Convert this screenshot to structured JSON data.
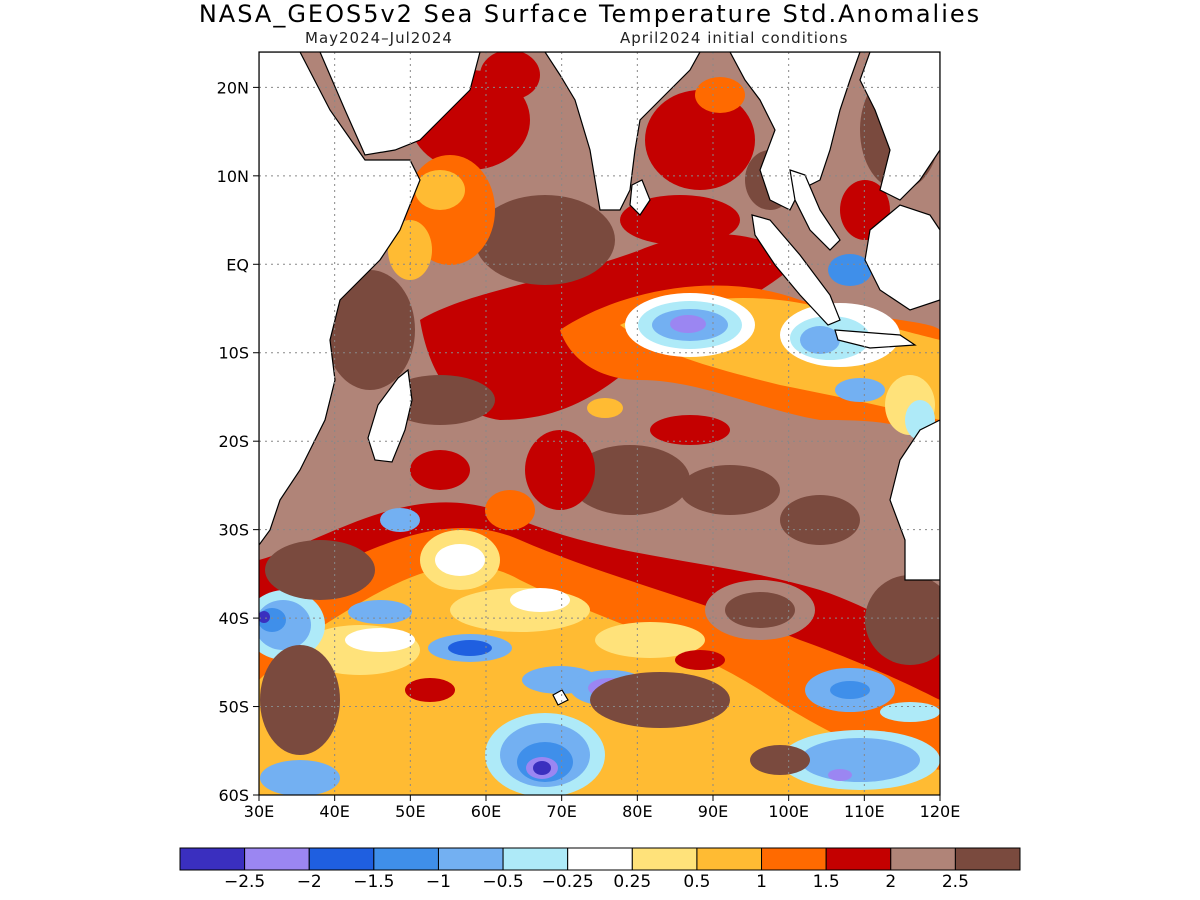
{
  "header": {
    "title": "NASA_GEOS5v2 Sea Surface Temperature Std.Anomalies",
    "period": "May2024–Jul2024",
    "init": "April2024 initial conditions"
  },
  "map": {
    "lat_labels": [
      "20N",
      "10N",
      "EQ",
      "10S",
      "20S",
      "30S",
      "40S",
      "50S",
      "60S"
    ],
    "lat_values": [
      20,
      10,
      0,
      -10,
      -20,
      -30,
      -40,
      -50,
      -60
    ],
    "lon_labels": [
      "30E",
      "40E",
      "50E",
      "60E",
      "70E",
      "80E",
      "90E",
      "100E",
      "110E",
      "120E"
    ],
    "lon_values": [
      30,
      40,
      50,
      60,
      70,
      80,
      90,
      100,
      110,
      120
    ],
    "lat_range": [
      -60,
      24
    ],
    "lon_range": [
      30,
      120
    ],
    "gridlines": true
  },
  "colorbar": {
    "labels": [
      "−2.5",
      "−2",
      "−1.5",
      "−1",
      "−0.5",
      "−0.25",
      "0.25",
      "0.5",
      "1",
      "1.5",
      "2",
      "2.5"
    ],
    "colors": [
      "#3a2fbf",
      "#9b86f2",
      "#1f5fe0",
      "#3f8fea",
      "#73b0f2",
      "#aeeaf8",
      "#ffffff",
      "#ffe27a",
      "#ffbb33",
      "#ff6a00",
      "#c40000",
      "#b08478",
      "#7a4a3e"
    ]
  }
}
